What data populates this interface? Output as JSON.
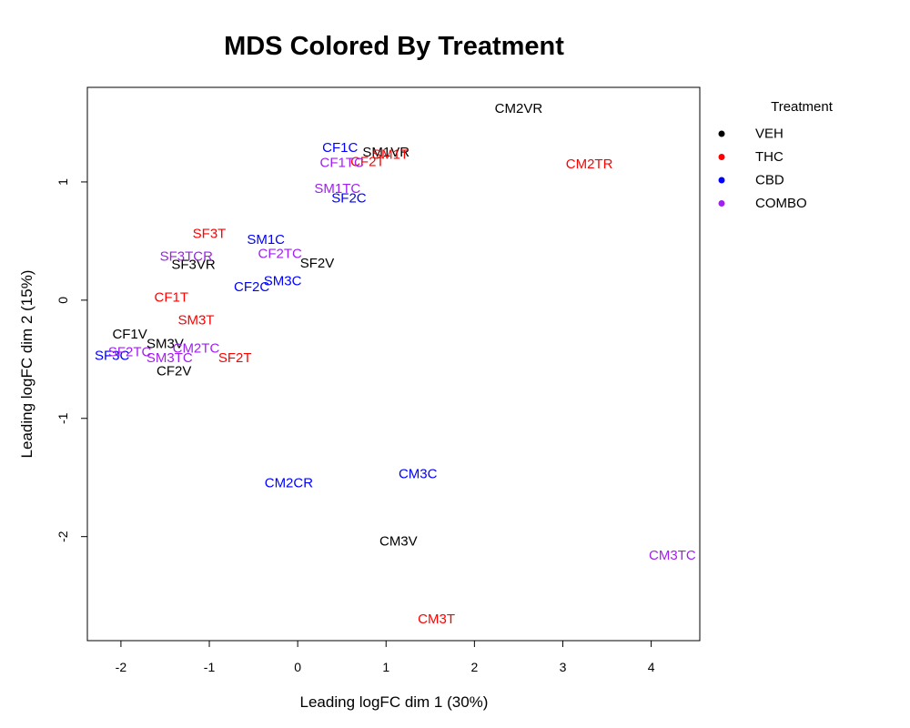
{
  "chart_data": {
    "type": "scatter",
    "title": "MDS Colored By Treatment",
    "xlabel": "Leading logFC dim 1 (30%)",
    "ylabel": "Leading logFC dim 2 (15%)",
    "xlim": [
      -2.38,
      4.55
    ],
    "ylim": [
      -2.88,
      1.8
    ],
    "xticks": [
      -2,
      -1,
      0,
      1,
      2,
      3,
      4
    ],
    "yticks": [
      -2,
      -1,
      0,
      1
    ],
    "legend": {
      "title": "Treatment",
      "position": "top-right-outside",
      "entries": [
        {
          "name": "VEH",
          "color": "#000000"
        },
        {
          "name": "THC",
          "color": "#ff0000"
        },
        {
          "name": "CBD",
          "color": "#0000ff"
        },
        {
          "name": "COMBO",
          "color": "#a020f0"
        }
      ]
    },
    "points": [
      {
        "label": "CM2VR",
        "x": 2.5,
        "y": 1.62,
        "group": "VEH"
      },
      {
        "label": "SM1VR",
        "x": 1.0,
        "y": 1.25,
        "group": "VEH"
      },
      {
        "label": "SF3VR",
        "x": -1.18,
        "y": 0.3,
        "group": "VEH"
      },
      {
        "label": "SF2V",
        "x": 0.22,
        "y": 0.31,
        "group": "VEH"
      },
      {
        "label": "CF1V",
        "x": -1.9,
        "y": -0.29,
        "group": "VEH"
      },
      {
        "label": "SM3V",
        "x": -1.5,
        "y": -0.37,
        "group": "VEH"
      },
      {
        "label": "CF2V",
        "x": -1.4,
        "y": -0.6,
        "group": "VEH"
      },
      {
        "label": "CM3V",
        "x": 1.14,
        "y": -2.04,
        "group": "VEH"
      },
      {
        "label": "CF2T",
        "x": 0.79,
        "y": 1.17,
        "group": "THC"
      },
      {
        "label": "SM1T",
        "x": 1.05,
        "y": 1.23,
        "group": "THC"
      },
      {
        "label": "CM2TR",
        "x": 3.3,
        "y": 1.15,
        "group": "THC"
      },
      {
        "label": "SF3T",
        "x": -1.0,
        "y": 0.56,
        "group": "THC"
      },
      {
        "label": "CF1T",
        "x": -1.43,
        "y": 0.02,
        "group": "THC"
      },
      {
        "label": "SM3T",
        "x": -1.15,
        "y": -0.17,
        "group": "THC"
      },
      {
        "label": "SF2T",
        "x": -0.71,
        "y": -0.49,
        "group": "THC"
      },
      {
        "label": "CM3T",
        "x": 1.57,
        "y": -2.7,
        "group": "THC"
      },
      {
        "label": "CF1C",
        "x": 0.48,
        "y": 1.29,
        "group": "CBD"
      },
      {
        "label": "SF2C",
        "x": 0.58,
        "y": 0.86,
        "group": "CBD"
      },
      {
        "label": "SM1C",
        "x": -0.36,
        "y": 0.51,
        "group": "CBD"
      },
      {
        "label": "CF2C",
        "x": -0.52,
        "y": 0.11,
        "group": "CBD"
      },
      {
        "label": "SM3C",
        "x": -0.17,
        "y": 0.16,
        "group": "CBD"
      },
      {
        "label": "SF3C",
        "x": -2.1,
        "y": -0.47,
        "group": "CBD"
      },
      {
        "label": "CM2CR",
        "x": -0.1,
        "y": -1.55,
        "group": "CBD"
      },
      {
        "label": "CM3C",
        "x": 1.36,
        "y": -1.47,
        "group": "CBD"
      },
      {
        "label": "CF1TC",
        "x": 0.5,
        "y": 1.16,
        "group": "COMBO"
      },
      {
        "label": "SM1TC",
        "x": 0.45,
        "y": 0.94,
        "group": "COMBO"
      },
      {
        "label": "CF2TC",
        "x": -0.2,
        "y": 0.39,
        "group": "COMBO"
      },
      {
        "label": "SF3TCR",
        "x": -1.26,
        "y": 0.37,
        "group": "COMBO"
      },
      {
        "label": "SF2TC",
        "x": -1.9,
        "y": -0.44,
        "group": "COMBO"
      },
      {
        "label": "CM2TC",
        "x": -1.15,
        "y": -0.41,
        "group": "COMBO"
      },
      {
        "label": "SM3TC",
        "x": -1.45,
        "y": -0.49,
        "group": "COMBO"
      },
      {
        "label": "CM3TC",
        "x": 4.24,
        "y": -2.16,
        "group": "COMBO"
      }
    ]
  }
}
